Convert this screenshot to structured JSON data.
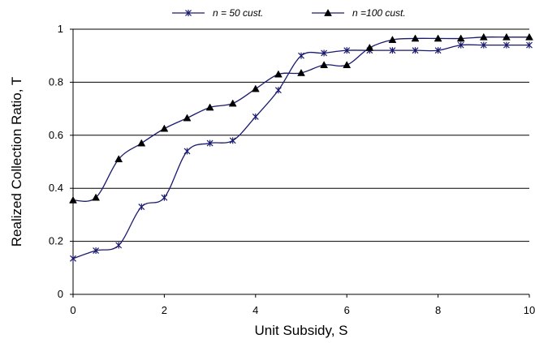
{
  "chart_data": {
    "type": "line",
    "xlabel": "Unit Subsidy, S",
    "ylabel": "Realized Collection Ratio, T",
    "xlim": [
      0,
      10
    ],
    "ylim": [
      0,
      1
    ],
    "x_ticks": [
      "0",
      "2",
      "4",
      "6",
      "8",
      "10"
    ],
    "y_ticks": [
      "0",
      "0.2",
      "0.4",
      "0.6",
      "0.8",
      "1"
    ],
    "grid": "horizontal",
    "legend_position": "top",
    "x": [
      0,
      0.5,
      1,
      1.5,
      2,
      2.5,
      3,
      3.5,
      4,
      4.5,
      5,
      5.5,
      6,
      6.5,
      7,
      7.5,
      8,
      8.5,
      9,
      9.5,
      10
    ],
    "series": [
      {
        "name": "n = 50 cust.",
        "marker": "asterisk",
        "color": "#1a1a6e",
        "values": [
          0.135,
          0.165,
          0.185,
          0.33,
          0.365,
          0.54,
          0.57,
          0.58,
          0.67,
          0.77,
          0.9,
          0.91,
          0.92,
          0.92,
          0.92,
          0.92,
          0.92,
          0.94,
          0.94,
          0.94,
          0.94
        ]
      },
      {
        "name": "n =100 cust.",
        "marker": "triangle",
        "color": "#1a1a6e",
        "values": [
          0.355,
          0.365,
          0.51,
          0.57,
          0.625,
          0.665,
          0.705,
          0.72,
          0.775,
          0.83,
          0.835,
          0.865,
          0.865,
          0.93,
          0.96,
          0.965,
          0.965,
          0.965,
          0.97,
          0.97,
          0.97
        ]
      }
    ]
  }
}
